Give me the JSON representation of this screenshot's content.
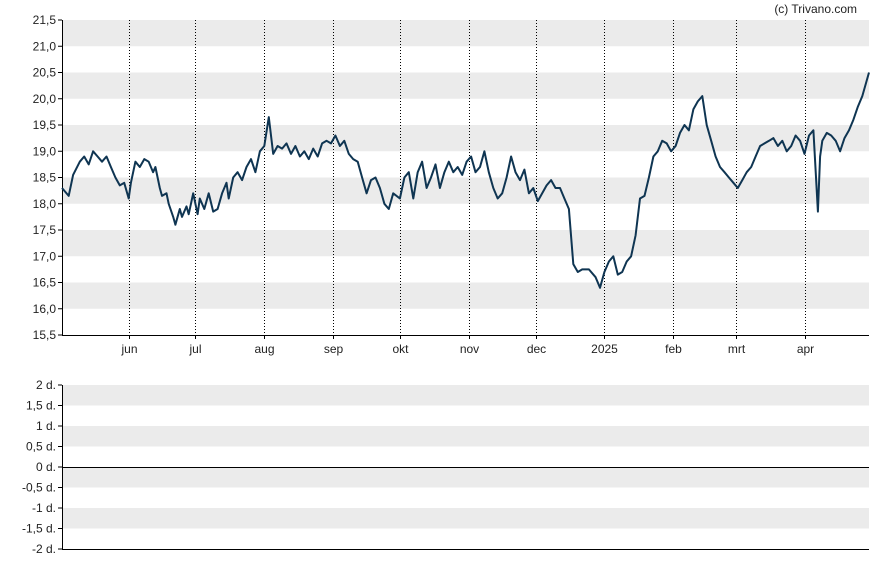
{
  "credit": "(c) Trivano.com",
  "colors": {
    "line": "#0f3552",
    "band": "#ebebeb",
    "axis": "#000000",
    "grid_dotted": "#000000",
    "text": "#222222"
  },
  "chart_data": [
    {
      "type": "line",
      "title": "",
      "xlabel": "",
      "ylabel": "",
      "ylim": [
        15.5,
        21.5
      ],
      "yticks": [
        "21,5",
        "21,0",
        "20,5",
        "20,0",
        "19,5",
        "19,0",
        "18,5",
        "18,0",
        "17,5",
        "17,0",
        "16,5",
        "16,0",
        "15,5"
      ],
      "xlim": [
        "2024-05-02",
        "2025-04-30"
      ],
      "xticks": [
        {
          "label": "jun",
          "date": "2024-06-01"
        },
        {
          "label": "jul",
          "date": "2024-07-01"
        },
        {
          "label": "aug",
          "date": "2024-08-01"
        },
        {
          "label": "sep",
          "date": "2024-09-01"
        },
        {
          "label": "okt",
          "date": "2024-10-01"
        },
        {
          "label": "nov",
          "date": "2024-11-01"
        },
        {
          "label": "dec",
          "date": "2024-12-01"
        },
        {
          "label": "2025",
          "date": "2025-01-01"
        },
        {
          "label": "feb",
          "date": "2025-02-01"
        },
        {
          "label": "mrt",
          "date": "2025-03-01"
        },
        {
          "label": "apr",
          "date": "2025-04-01"
        }
      ],
      "grid": "alternating horizontal bands, dotted vertical month lines",
      "series": [
        {
          "color": "#0f3552",
          "points": [
            [
              "2024-05-02",
              18.3
            ],
            [
              "2024-05-05",
              18.15
            ],
            [
              "2024-05-07",
              18.55
            ],
            [
              "2024-05-10",
              18.8
            ],
            [
              "2024-05-12",
              18.9
            ],
            [
              "2024-05-14",
              18.75
            ],
            [
              "2024-05-16",
              19.0
            ],
            [
              "2024-05-18",
              18.9
            ],
            [
              "2024-05-20",
              18.8
            ],
            [
              "2024-05-22",
              18.9
            ],
            [
              "2024-05-24",
              18.7
            ],
            [
              "2024-05-26",
              18.5
            ],
            [
              "2024-05-28",
              18.35
            ],
            [
              "2024-05-30",
              18.4
            ],
            [
              "2024-06-01",
              18.1
            ],
            [
              "2024-06-02",
              18.4
            ],
            [
              "2024-06-04",
              18.8
            ],
            [
              "2024-06-06",
              18.7
            ],
            [
              "2024-06-08",
              18.85
            ],
            [
              "2024-06-10",
              18.8
            ],
            [
              "2024-06-12",
              18.6
            ],
            [
              "2024-06-13",
              18.7
            ],
            [
              "2024-06-15",
              18.3
            ],
            [
              "2024-06-16",
              18.15
            ],
            [
              "2024-06-18",
              18.2
            ],
            [
              "2024-06-19",
              18.0
            ],
            [
              "2024-06-21",
              17.75
            ],
            [
              "2024-06-22",
              17.6
            ],
            [
              "2024-06-24",
              17.9
            ],
            [
              "2024-06-25",
              17.75
            ],
            [
              "2024-06-27",
              17.95
            ],
            [
              "2024-06-28",
              17.8
            ],
            [
              "2024-06-30",
              18.2
            ],
            [
              "2024-07-02",
              17.8
            ],
            [
              "2024-07-03",
              18.1
            ],
            [
              "2024-07-05",
              17.9
            ],
            [
              "2024-07-07",
              18.2
            ],
            [
              "2024-07-09",
              17.85
            ],
            [
              "2024-07-11",
              17.9
            ],
            [
              "2024-07-13",
              18.2
            ],
            [
              "2024-07-15",
              18.4
            ],
            [
              "2024-07-16",
              18.1
            ],
            [
              "2024-07-18",
              18.5
            ],
            [
              "2024-07-20",
              18.6
            ],
            [
              "2024-07-22",
              18.45
            ],
            [
              "2024-07-24",
              18.7
            ],
            [
              "2024-07-26",
              18.85
            ],
            [
              "2024-07-28",
              18.6
            ],
            [
              "2024-07-30",
              19.0
            ],
            [
              "2024-08-01",
              19.1
            ],
            [
              "2024-08-03",
              19.65
            ],
            [
              "2024-08-05",
              18.95
            ],
            [
              "2024-08-07",
              19.1
            ],
            [
              "2024-08-09",
              19.05
            ],
            [
              "2024-08-11",
              19.15
            ],
            [
              "2024-08-13",
              18.95
            ],
            [
              "2024-08-15",
              19.1
            ],
            [
              "2024-08-17",
              18.9
            ],
            [
              "2024-08-19",
              19.0
            ],
            [
              "2024-08-21",
              18.85
            ],
            [
              "2024-08-23",
              19.05
            ],
            [
              "2024-08-25",
              18.9
            ],
            [
              "2024-08-27",
              19.15
            ],
            [
              "2024-08-29",
              19.2
            ],
            [
              "2024-08-31",
              19.15
            ],
            [
              "2024-09-02",
              19.3
            ],
            [
              "2024-09-04",
              19.1
            ],
            [
              "2024-09-06",
              19.2
            ],
            [
              "2024-09-08",
              18.95
            ],
            [
              "2024-09-10",
              18.85
            ],
            [
              "2024-09-12",
              18.8
            ],
            [
              "2024-09-14",
              18.5
            ],
            [
              "2024-09-16",
              18.2
            ],
            [
              "2024-09-18",
              18.45
            ],
            [
              "2024-09-20",
              18.5
            ],
            [
              "2024-09-22",
              18.3
            ],
            [
              "2024-09-24",
              18.0
            ],
            [
              "2024-09-26",
              17.9
            ],
            [
              "2024-09-28",
              18.2
            ],
            [
              "2024-10-01",
              18.1
            ],
            [
              "2024-10-03",
              18.5
            ],
            [
              "2024-10-05",
              18.6
            ],
            [
              "2024-10-07",
              18.1
            ],
            [
              "2024-10-09",
              18.6
            ],
            [
              "2024-10-11",
              18.8
            ],
            [
              "2024-10-13",
              18.3
            ],
            [
              "2024-10-15",
              18.5
            ],
            [
              "2024-10-17",
              18.75
            ],
            [
              "2024-10-19",
              18.3
            ],
            [
              "2024-10-21",
              18.6
            ],
            [
              "2024-10-23",
              18.8
            ],
            [
              "2024-10-25",
              18.6
            ],
            [
              "2024-10-27",
              18.7
            ],
            [
              "2024-10-29",
              18.55
            ],
            [
              "2024-10-31",
              18.8
            ],
            [
              "2024-11-02",
              18.9
            ],
            [
              "2024-11-04",
              18.6
            ],
            [
              "2024-11-06",
              18.7
            ],
            [
              "2024-11-08",
              19.0
            ],
            [
              "2024-11-10",
              18.6
            ],
            [
              "2024-11-12",
              18.3
            ],
            [
              "2024-11-14",
              18.1
            ],
            [
              "2024-11-16",
              18.2
            ],
            [
              "2024-11-18",
              18.5
            ],
            [
              "2024-11-20",
              18.9
            ],
            [
              "2024-11-22",
              18.6
            ],
            [
              "2024-11-24",
              18.45
            ],
            [
              "2024-11-26",
              18.65
            ],
            [
              "2024-11-28",
              18.2
            ],
            [
              "2024-11-30",
              18.3
            ],
            [
              "2024-12-02",
              18.05
            ],
            [
              "2024-12-04",
              18.2
            ],
            [
              "2024-12-06",
              18.35
            ],
            [
              "2024-12-08",
              18.45
            ],
            [
              "2024-12-10",
              18.3
            ],
            [
              "2024-12-12",
              18.3
            ],
            [
              "2024-12-14",
              18.1
            ],
            [
              "2024-12-16",
              17.9
            ],
            [
              "2024-12-18",
              16.85
            ],
            [
              "2024-12-20",
              16.7
            ],
            [
              "2024-12-22",
              16.75
            ],
            [
              "2024-12-25",
              16.75
            ],
            [
              "2024-12-28",
              16.6
            ],
            [
              "2024-12-30",
              16.4
            ],
            [
              "2025-01-01",
              16.7
            ],
            [
              "2025-01-03",
              16.9
            ],
            [
              "2025-01-05",
              17.0
            ],
            [
              "2025-01-07",
              16.65
            ],
            [
              "2025-01-09",
              16.7
            ],
            [
              "2025-01-11",
              16.9
            ],
            [
              "2025-01-13",
              17.0
            ],
            [
              "2025-01-15",
              17.4
            ],
            [
              "2025-01-17",
              18.1
            ],
            [
              "2025-01-19",
              18.15
            ],
            [
              "2025-01-21",
              18.5
            ],
            [
              "2025-01-23",
              18.9
            ],
            [
              "2025-01-25",
              19.0
            ],
            [
              "2025-01-27",
              19.2
            ],
            [
              "2025-01-29",
              19.15
            ],
            [
              "2025-01-31",
              19.0
            ],
            [
              "2025-02-02",
              19.1
            ],
            [
              "2025-02-04",
              19.35
            ],
            [
              "2025-02-06",
              19.5
            ],
            [
              "2025-02-08",
              19.4
            ],
            [
              "2025-02-10",
              19.8
            ],
            [
              "2025-02-12",
              19.95
            ],
            [
              "2025-02-14",
              20.05
            ],
            [
              "2025-02-16",
              19.5
            ],
            [
              "2025-02-18",
              19.2
            ],
            [
              "2025-02-20",
              18.9
            ],
            [
              "2025-02-22",
              18.7
            ],
            [
              "2025-02-24",
              18.6
            ],
            [
              "2025-02-26",
              18.5
            ],
            [
              "2025-02-28",
              18.4
            ],
            [
              "2025-03-02",
              18.3
            ],
            [
              "2025-03-04",
              18.45
            ],
            [
              "2025-03-06",
              18.6
            ],
            [
              "2025-03-08",
              18.7
            ],
            [
              "2025-03-10",
              18.9
            ],
            [
              "2025-03-12",
              19.1
            ],
            [
              "2025-03-14",
              19.15
            ],
            [
              "2025-03-16",
              19.2
            ],
            [
              "2025-03-18",
              19.25
            ],
            [
              "2025-03-20",
              19.1
            ],
            [
              "2025-03-22",
              19.2
            ],
            [
              "2025-03-24",
              19.0
            ],
            [
              "2025-03-26",
              19.1
            ],
            [
              "2025-03-28",
              19.3
            ],
            [
              "2025-03-30",
              19.2
            ],
            [
              "2025-04-01",
              18.95
            ],
            [
              "2025-04-03",
              19.3
            ],
            [
              "2025-04-05",
              19.4
            ],
            [
              "2025-04-07",
              17.85
            ],
            [
              "2025-04-08",
              18.9
            ],
            [
              "2025-04-09",
              19.2
            ],
            [
              "2025-04-11",
              19.35
            ],
            [
              "2025-04-13",
              19.3
            ],
            [
              "2025-04-15",
              19.2
            ],
            [
              "2025-04-17",
              19.0
            ],
            [
              "2025-04-19",
              19.25
            ],
            [
              "2025-04-21",
              19.4
            ],
            [
              "2025-04-23",
              19.6
            ],
            [
              "2025-04-25",
              19.85
            ],
            [
              "2025-04-27",
              20.05
            ],
            [
              "2025-04-30",
              20.5
            ]
          ]
        }
      ]
    },
    {
      "type": "line",
      "title": "",
      "xlabel": "",
      "ylabel": "",
      "ylim": [
        -2,
        2
      ],
      "yticks": [
        "2 d.",
        "1,5 d.",
        "1 d.",
        "0,5 d.",
        "0 d.",
        "-0,5 d.",
        "-1 d.",
        "-1,5 d.",
        "-2 d."
      ],
      "zero_line": 0,
      "grid": "alternating horizontal bands",
      "series": []
    }
  ]
}
